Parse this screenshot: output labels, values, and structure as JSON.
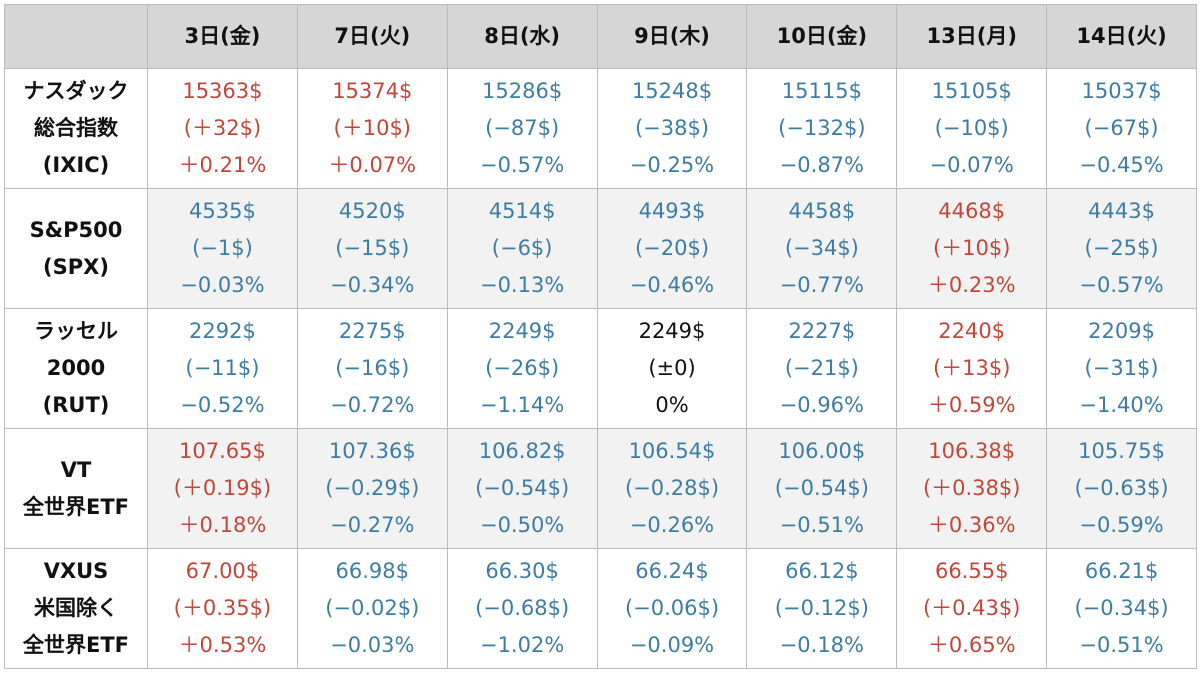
{
  "table": {
    "header": [
      "3日(金)",
      "7日(火)",
      "8日(水)",
      "9日(木)",
      "10日(金)",
      "13日(月)",
      "14日(火)"
    ],
    "colors": {
      "up": "#c2473b",
      "down": "#3f7ca3",
      "flat": "#111111"
    },
    "rows": [
      {
        "label": [
          "ナスダック",
          "総合指数",
          "(IXIC)"
        ],
        "cells": [
          {
            "tone": "up",
            "lines": [
              "15363$",
              "(＋32$)",
              "＋0.21%"
            ]
          },
          {
            "tone": "up",
            "lines": [
              "15374$",
              "(＋10$)",
              "＋0.07%"
            ]
          },
          {
            "tone": "down",
            "lines": [
              "15286$",
              "(−87$)",
              "−0.57%"
            ]
          },
          {
            "tone": "down",
            "lines": [
              "15248$",
              "(−38$)",
              "−0.25%"
            ]
          },
          {
            "tone": "down",
            "lines": [
              "15115$",
              "(−132$)",
              "−0.87%"
            ]
          },
          {
            "tone": "down",
            "lines": [
              "15105$",
              "(−10$)",
              "−0.07%"
            ]
          },
          {
            "tone": "down",
            "lines": [
              "15037$",
              "(−67$)",
              "−0.45%"
            ]
          }
        ]
      },
      {
        "label": [
          "S&P500",
          "(SPX)"
        ],
        "cells": [
          {
            "tone": "down",
            "lines": [
              "4535$",
              "(−1$)",
              "−0.03%"
            ]
          },
          {
            "tone": "down",
            "lines": [
              "4520$",
              "(−15$)",
              "−0.34%"
            ]
          },
          {
            "tone": "down",
            "lines": [
              "4514$",
              "(−6$)",
              "−0.13%"
            ]
          },
          {
            "tone": "down",
            "lines": [
              "4493$",
              "(−20$)",
              "−0.46%"
            ]
          },
          {
            "tone": "down",
            "lines": [
              "4458$",
              "(−34$)",
              "−0.77%"
            ]
          },
          {
            "tone": "up",
            "lines": [
              "4468$",
              "(＋10$)",
              "＋0.23%"
            ]
          },
          {
            "tone": "down",
            "lines": [
              "4443$",
              "(−25$)",
              "−0.57%"
            ]
          }
        ]
      },
      {
        "label": [
          "ラッセル",
          "2000",
          "(RUT)"
        ],
        "cells": [
          {
            "tone": "down",
            "lines": [
              "2292$",
              "(−11$)",
              "−0.52%"
            ]
          },
          {
            "tone": "down",
            "lines": [
              "2275$",
              "(−16$)",
              "−0.72%"
            ]
          },
          {
            "tone": "down",
            "lines": [
              "2249$",
              "(−26$)",
              "−1.14%"
            ]
          },
          {
            "tone": "flat",
            "lines": [
              "2249$",
              "(±0)",
              "0%"
            ]
          },
          {
            "tone": "down",
            "lines": [
              "2227$",
              "(−21$)",
              "−0.96%"
            ]
          },
          {
            "tone": "up",
            "lines": [
              "2240$",
              "(＋13$)",
              "＋0.59%"
            ]
          },
          {
            "tone": "down",
            "lines": [
              "2209$",
              "(−31$)",
              "−1.40%"
            ]
          }
        ]
      },
      {
        "label": [
          "VT",
          "全世界ETF"
        ],
        "cells": [
          {
            "tone": "up",
            "lines": [
              "107.65$",
              "(＋0.19$)",
              "＋0.18%"
            ]
          },
          {
            "tone": "down",
            "lines": [
              "107.36$",
              "(−0.29$)",
              "−0.27%"
            ]
          },
          {
            "tone": "down",
            "lines": [
              "106.82$",
              "(−0.54$)",
              "−0.50%"
            ]
          },
          {
            "tone": "down",
            "lines": [
              "106.54$",
              "(−0.28$)",
              "−0.26%"
            ]
          },
          {
            "tone": "down",
            "lines": [
              "106.00$",
              "(−0.54$)",
              "−0.51%"
            ]
          },
          {
            "tone": "up",
            "lines": [
              "106.38$",
              "(＋0.38$)",
              "＋0.36%"
            ]
          },
          {
            "tone": "down",
            "lines": [
              "105.75$",
              "(−0.63$)",
              "−0.59%"
            ]
          }
        ]
      },
      {
        "label": [
          "VXUS",
          "米国除く",
          "全世界ETF"
        ],
        "cells": [
          {
            "tone": "up",
            "lines": [
              "67.00$",
              "(＋0.35$)",
              "＋0.53%"
            ]
          },
          {
            "tone": "down",
            "lines": [
              "66.98$",
              "(−0.02$)",
              "−0.03%"
            ]
          },
          {
            "tone": "down",
            "lines": [
              "66.30$",
              "(−0.68$)",
              "−1.02%"
            ]
          },
          {
            "tone": "down",
            "lines": [
              "66.24$",
              "(−0.06$)",
              "−0.09%"
            ]
          },
          {
            "tone": "down",
            "lines": [
              "66.12$",
              "(−0.12$)",
              "−0.18%"
            ]
          },
          {
            "tone": "up",
            "lines": [
              "66.55$",
              "(＋0.43$)",
              "＋0.65%"
            ]
          },
          {
            "tone": "down",
            "lines": [
              "66.21$",
              "(−0.34$)",
              "−0.51%"
            ]
          }
        ]
      }
    ]
  }
}
